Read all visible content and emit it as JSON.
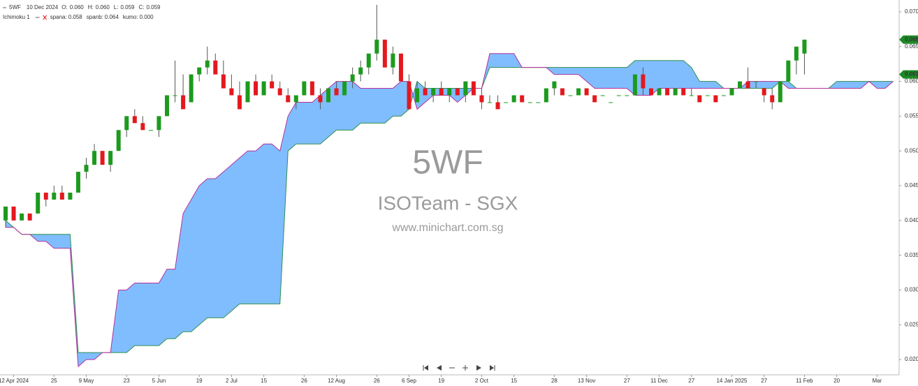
{
  "chart_data": {
    "type": "candlestick",
    "info": {
      "symbol": "5WF",
      "date": "10 Dec 2024",
      "fields": [
        {
          "label": "O:",
          "value": "0.060"
        },
        {
          "label": "H:",
          "value": "0.060"
        },
        {
          "label": "L:",
          "value": "0.059"
        },
        {
          "label": "C:",
          "value": "0.059"
        }
      ]
    },
    "indicator": {
      "name": "Ichimoku 1",
      "fields": [
        {
          "label": "spana:",
          "value": "0.058"
        },
        {
          "label": "spanb:",
          "value": "0.064"
        },
        {
          "label": "kumo:",
          "value": "0.000"
        }
      ]
    },
    "watermark": [
      "5WF",
      "ISOTeam - SGX",
      "www.minichart.com.sg"
    ],
    "up_color": "#1d9a1d",
    "down_color": "#e3191e",
    "open": [
      0.04,
      0.042,
      0.04,
      0.041,
      0.041,
      0.044,
      0.043,
      0.044,
      0.043,
      0.044,
      0.047,
      0.048,
      0.05,
      0.048,
      0.05,
      0.053,
      0.055,
      0.054,
      0.053,
      0.053,
      0.055,
      0.058,
      0.058,
      0.057,
      0.061,
      0.062,
      0.063,
      0.061,
      0.059,
      0.058,
      0.057,
      0.06,
      0.058,
      0.06,
      0.059,
      0.058,
      0.057,
      0.058,
      0.06,
      0.058,
      0.057,
      0.059,
      0.058,
      0.06,
      0.061,
      0.062,
      0.064,
      0.066,
      0.062,
      0.064,
      0.06,
      0.057,
      0.059,
      0.058,
      0.059,
      0.058,
      0.059,
      0.058,
      0.06,
      0.058,
      0.057,
      0.057,
      0.057,
      0.057,
      0.058,
      0.057,
      0.057,
      0.057,
      0.059,
      0.059,
      0.058,
      0.058,
      0.059,
      0.058,
      0.058,
      0.057,
      0.058,
      0.058,
      0.058,
      0.061,
      0.059,
      0.058,
      0.059,
      0.058,
      0.059,
      0.058,
      0.058,
      0.058,
      0.058,
      0.058,
      0.058,
      0.059,
      0.06,
      0.06,
      0.059,
      0.058,
      0.057,
      0.06,
      0.063,
      0.064
    ],
    "high": [
      0.042,
      0.042,
      0.041,
      0.041,
      0.044,
      0.044,
      0.045,
      0.045,
      0.044,
      0.047,
      0.049,
      0.051,
      0.05,
      0.05,
      0.053,
      0.055,
      0.056,
      0.055,
      0.053,
      0.055,
      0.058,
      0.063,
      0.061,
      0.061,
      0.062,
      0.065,
      0.064,
      0.063,
      0.061,
      0.06,
      0.06,
      0.061,
      0.06,
      0.061,
      0.06,
      0.059,
      0.058,
      0.06,
      0.06,
      0.059,
      0.059,
      0.06,
      0.06,
      0.062,
      0.063,
      0.064,
      0.071,
      0.066,
      0.065,
      0.064,
      0.061,
      0.06,
      0.06,
      0.059,
      0.06,
      0.059,
      0.059,
      0.06,
      0.06,
      0.059,
      0.058,
      0.058,
      0.057,
      0.058,
      0.058,
      0.057,
      0.057,
      0.059,
      0.06,
      0.059,
      0.058,
      0.059,
      0.059,
      0.058,
      0.058,
      0.057,
      0.058,
      0.058,
      0.061,
      0.062,
      0.059,
      0.059,
      0.059,
      0.059,
      0.059,
      0.059,
      0.058,
      0.058,
      0.058,
      0.058,
      0.059,
      0.06,
      0.062,
      0.06,
      0.059,
      0.059,
      0.06,
      0.063,
      0.065,
      0.066
    ],
    "low": [
      0.039,
      0.04,
      0.04,
      0.04,
      0.041,
      0.042,
      0.043,
      0.043,
      0.043,
      0.044,
      0.046,
      0.048,
      0.048,
      0.047,
      0.05,
      0.052,
      0.054,
      0.053,
      0.053,
      0.052,
      0.055,
      0.057,
      0.056,
      0.057,
      0.06,
      0.061,
      0.061,
      0.059,
      0.058,
      0.056,
      0.057,
      0.058,
      0.058,
      0.059,
      0.058,
      0.057,
      0.056,
      0.058,
      0.058,
      0.056,
      0.057,
      0.058,
      0.058,
      0.059,
      0.06,
      0.061,
      0.063,
      0.062,
      0.061,
      0.06,
      0.056,
      0.057,
      0.058,
      0.057,
      0.058,
      0.057,
      0.058,
      0.057,
      0.058,
      0.056,
      0.057,
      0.056,
      0.057,
      0.057,
      0.057,
      0.057,
      0.057,
      0.057,
      0.058,
      0.058,
      0.058,
      0.058,
      0.058,
      0.057,
      0.058,
      0.057,
      0.058,
      0.058,
      0.058,
      0.058,
      0.058,
      0.058,
      0.058,
      0.058,
      0.058,
      0.058,
      0.057,
      0.058,
      0.057,
      0.058,
      0.058,
      0.059,
      0.059,
      0.059,
      0.057,
      0.056,
      0.057,
      0.06,
      0.061,
      0.061
    ],
    "close": [
      0.042,
      0.04,
      0.041,
      0.04,
      0.044,
      0.043,
      0.044,
      0.043,
      0.044,
      0.047,
      0.048,
      0.05,
      0.048,
      0.05,
      0.053,
      0.055,
      0.054,
      0.053,
      0.053,
      0.055,
      0.058,
      0.058,
      0.056,
      0.061,
      0.062,
      0.063,
      0.061,
      0.059,
      0.058,
      0.056,
      0.06,
      0.058,
      0.06,
      0.059,
      0.058,
      0.057,
      0.058,
      0.06,
      0.058,
      0.057,
      0.059,
      0.058,
      0.06,
      0.061,
      0.062,
      0.064,
      0.066,
      0.062,
      0.064,
      0.06,
      0.056,
      0.059,
      0.058,
      0.059,
      0.058,
      0.059,
      0.058,
      0.06,
      0.058,
      0.057,
      0.057,
      0.056,
      0.057,
      0.058,
      0.057,
      0.057,
      0.057,
      0.059,
      0.06,
      0.058,
      0.058,
      0.059,
      0.058,
      0.057,
      0.058,
      0.057,
      0.058,
      0.058,
      0.061,
      0.059,
      0.058,
      0.059,
      0.058,
      0.059,
      0.058,
      0.058,
      0.057,
      0.058,
      0.057,
      0.058,
      0.059,
      0.06,
      0.059,
      0.06,
      0.058,
      0.057,
      0.06,
      0.063,
      0.065,
      0.066
    ],
    "cloud": {
      "fill": "#80bdff",
      "spana": {
        "color": "#b5309a",
        "values": [
          0.039,
          0.039,
          0.038,
          0.038,
          0.037,
          0.037,
          0.036,
          0.036,
          0.036,
          0.019,
          0.02,
          0.02,
          0.021,
          0.021,
          0.03,
          0.03,
          0.031,
          0.031,
          0.031,
          0.031,
          0.033,
          0.033,
          0.041,
          0.043,
          0.045,
          0.046,
          0.046,
          0.047,
          0.048,
          0.049,
          0.05,
          0.05,
          0.051,
          0.051,
          0.05,
          0.055,
          0.057,
          0.057,
          0.057,
          0.058,
          0.059,
          0.06,
          0.06,
          0.06,
          0.059,
          0.059,
          0.059,
          0.059,
          0.059,
          0.06,
          0.06,
          0.056,
          0.057,
          0.058,
          0.058,
          0.058,
          0.057,
          0.058,
          0.059,
          0.059,
          0.064,
          0.064,
          0.064,
          0.064,
          0.062,
          0.062,
          0.062,
          0.062,
          0.061,
          0.061,
          0.061,
          0.061,
          0.06,
          0.059,
          0.059,
          0.059,
          0.059,
          0.059,
          0.058,
          0.058,
          0.058,
          0.059,
          0.059,
          0.059,
          0.059,
          0.059,
          0.059,
          0.059,
          0.059,
          0.059,
          0.059,
          0.059,
          0.06,
          0.06,
          0.06,
          0.06,
          0.06,
          0.059,
          0.059,
          0.059,
          0.059,
          0.059,
          0.059,
          0.059,
          0.059,
          0.059,
          0.059,
          0.06,
          0.059,
          0.059,
          0.06
        ]
      },
      "spanb": {
        "color": "#2f8f4f",
        "values": [
          0.04,
          0.039,
          0.038,
          0.038,
          0.038,
          0.038,
          0.038,
          0.038,
          0.038,
          0.021,
          0.021,
          0.021,
          0.021,
          0.021,
          0.021,
          0.021,
          0.022,
          0.022,
          0.022,
          0.022,
          0.023,
          0.023,
          0.024,
          0.024,
          0.025,
          0.026,
          0.026,
          0.026,
          0.027,
          0.028,
          0.028,
          0.028,
          0.028,
          0.028,
          0.028,
          0.05,
          0.051,
          0.051,
          0.051,
          0.051,
          0.052,
          0.053,
          0.053,
          0.053,
          0.054,
          0.054,
          0.054,
          0.054,
          0.055,
          0.055,
          0.056,
          0.06,
          0.059,
          0.059,
          0.059,
          0.059,
          0.059,
          0.059,
          0.059,
          0.059,
          0.062,
          0.062,
          0.062,
          0.062,
          0.062,
          0.062,
          0.062,
          0.062,
          0.062,
          0.062,
          0.062,
          0.062,
          0.062,
          0.062,
          0.062,
          0.062,
          0.062,
          0.062,
          0.063,
          0.063,
          0.063,
          0.063,
          0.063,
          0.063,
          0.063,
          0.062,
          0.06,
          0.06,
          0.06,
          0.059,
          0.059,
          0.059,
          0.059,
          0.059,
          0.059,
          0.059,
          0.06,
          0.06,
          0.059,
          0.059,
          0.059,
          0.059,
          0.059,
          0.06,
          0.06,
          0.06,
          0.06,
          0.06,
          0.06,
          0.06,
          0.06
        ]
      }
    },
    "ylim": [
      0.0178,
      0.0712
    ],
    "yticks": [
      {
        "value": 0.02,
        "label": "0.020"
      },
      {
        "value": 0.025,
        "label": "0.025"
      },
      {
        "value": 0.03,
        "label": "0.030"
      },
      {
        "value": 0.035,
        "label": "0.035"
      },
      {
        "value": 0.04,
        "label": "0.040"
      },
      {
        "value": 0.045,
        "label": "0.045"
      },
      {
        "value": 0.05,
        "label": "0.050"
      },
      {
        "value": 0.055,
        "label": "0.055"
      },
      {
        "value": 0.06,
        "label": "0.060"
      },
      {
        "value": 0.065,
        "label": "0.065"
      },
      {
        "value": 0.07,
        "label": "0.070"
      }
    ],
    "xticks": [
      {
        "value": 1,
        "label": "12 Apr 2024"
      },
      {
        "value": 6,
        "label": "25"
      },
      {
        "value": 10,
        "label": "9 May"
      },
      {
        "value": 15,
        "label": "23"
      },
      {
        "value": 19,
        "label": "5 Jun"
      },
      {
        "value": 24,
        "label": "19"
      },
      {
        "value": 28,
        "label": "2 Jul"
      },
      {
        "value": 32,
        "label": "15"
      },
      {
        "value": 37,
        "label": "26"
      },
      {
        "value": 41,
        "label": "12 Aug"
      },
      {
        "value": 46,
        "label": "26"
      },
      {
        "value": 50,
        "label": "6 Sep"
      },
      {
        "value": 54,
        "label": "19"
      },
      {
        "value": 59,
        "label": "2 Oct"
      },
      {
        "value": 63,
        "label": "15"
      },
      {
        "value": 68,
        "label": "28"
      },
      {
        "value": 72,
        "label": "13 Nov"
      },
      {
        "value": 77,
        "label": "27"
      },
      {
        "value": 81,
        "label": "11 Dec"
      },
      {
        "value": 85,
        "label": "27"
      },
      {
        "value": 90,
        "label": "14 Jan 2025"
      },
      {
        "value": 94,
        "label": "27"
      },
      {
        "value": 99,
        "label": "11 Feb"
      },
      {
        "value": 103,
        "label": "20"
      },
      {
        "value": 108,
        "label": "Mar"
      }
    ],
    "price_tags": [
      {
        "value": 0.066,
        "label": "0.066"
      },
      {
        "value": 0.061,
        "label": "0.061"
      }
    ],
    "price_tag_color": "#1b8a24"
  }
}
